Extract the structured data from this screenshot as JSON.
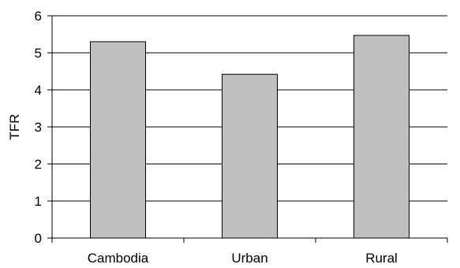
{
  "chart_data": {
    "type": "bar",
    "categories": [
      "Cambodia",
      "Urban",
      "Rural"
    ],
    "values": [
      5.3,
      4.42,
      5.47
    ],
    "title": "",
    "xlabel": "",
    "ylabel": "TFR",
    "ylim": [
      0,
      6
    ],
    "yticks": [
      0,
      1,
      2,
      3,
      4,
      5,
      6
    ],
    "grid": true,
    "legend": "none",
    "colors": {
      "bar_fill": "#c0c0c0",
      "bar_stroke": "#000000",
      "grid": "#000000",
      "axis": "#000000"
    }
  }
}
